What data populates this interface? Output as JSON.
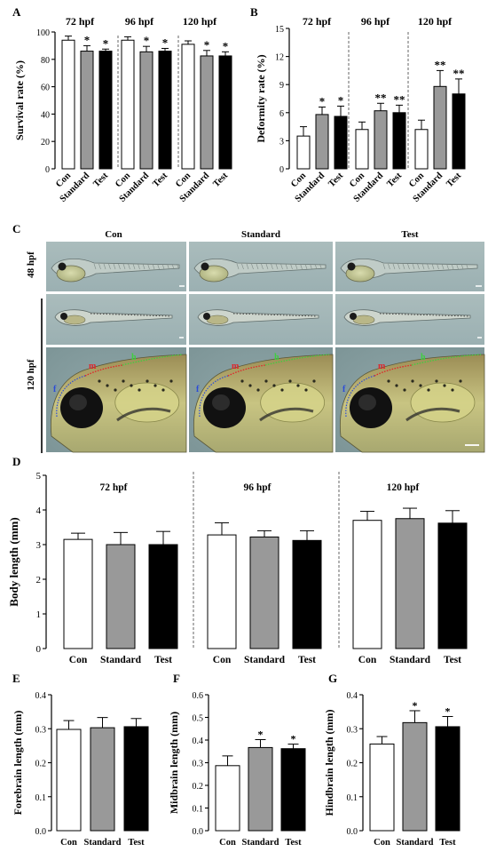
{
  "panels": {
    "A": "A",
    "B": "B",
    "C": "C",
    "D": "D",
    "E": "E",
    "F": "F",
    "G": "G"
  },
  "bar_colors": {
    "Con": "#ffffff",
    "Standard": "#999999",
    "Test": "#000000"
  },
  "micro": {
    "col_labels": [
      "Con",
      "Standard",
      "Test"
    ],
    "row_labels": [
      "48 hpf",
      "120 hpf"
    ],
    "region_labels": {
      "forebrain": "f",
      "midbrain": "m",
      "hindbrain": "h"
    },
    "region_colors": {
      "forebrain": "#2b4bd8",
      "midbrain": "#e0242a",
      "hindbrain": "#3fcf3f"
    }
  },
  "chart_data": [
    {
      "id": "A",
      "type": "bar",
      "groups": [
        "72 hpf",
        "96 hpf",
        "120 hpf"
      ],
      "categories": [
        "Con",
        "Standard",
        "Test"
      ],
      "series": [
        {
          "group": "72 hpf",
          "values": [
            94,
            86,
            86
          ],
          "errors": [
            3,
            4,
            1.5
          ],
          "sig": [
            "",
            "*",
            "*"
          ]
        },
        {
          "group": "96 hpf",
          "values": [
            94,
            85.5,
            86
          ],
          "errors": [
            2.5,
            4,
            2
          ],
          "sig": [
            "",
            "*",
            "*"
          ]
        },
        {
          "group": "120 hpf",
          "values": [
            91,
            82.5,
            82.5
          ],
          "errors": [
            2.5,
            4,
            3
          ],
          "sig": [
            "",
            "*",
            "*"
          ]
        }
      ],
      "ylabel": "Survival rate (%)",
      "ylim": [
        0,
        100
      ],
      "yticks": [
        "0",
        "20",
        "40",
        "60",
        "80",
        "100"
      ]
    },
    {
      "id": "B",
      "type": "bar",
      "groups": [
        "72 hpf",
        "96 hpf",
        "120 hpf"
      ],
      "categories": [
        "Con",
        "Standard",
        "Test"
      ],
      "series": [
        {
          "group": "72 hpf",
          "values": [
            3.5,
            5.8,
            5.6
          ],
          "errors": [
            1.0,
            0.8,
            1.1
          ],
          "sig": [
            "",
            "*",
            "*"
          ]
        },
        {
          "group": "96 hpf",
          "values": [
            4.2,
            6.2,
            6.0
          ],
          "errors": [
            0.8,
            0.8,
            0.8
          ],
          "sig": [
            "",
            "**",
            "**"
          ]
        },
        {
          "group": "120 hpf",
          "values": [
            4.2,
            8.8,
            8.0
          ],
          "errors": [
            1.0,
            1.7,
            1.6
          ],
          "sig": [
            "",
            "**",
            "**"
          ]
        }
      ],
      "ylabel": "Deformity rate (%)",
      "ylim": [
        0,
        15
      ],
      "yticks": [
        "0",
        "3",
        "6",
        "9",
        "12",
        "15"
      ]
    },
    {
      "id": "D",
      "type": "bar",
      "groups": [
        "72 hpf",
        "96 hpf",
        "120 hpf"
      ],
      "categories": [
        "Con",
        "Standard",
        "Test"
      ],
      "series": [
        {
          "group": "72 hpf",
          "values": [
            3.15,
            3.0,
            3.0
          ],
          "errors": [
            0.18,
            0.35,
            0.38
          ],
          "sig": [
            "",
            "",
            ""
          ]
        },
        {
          "group": "96 hpf",
          "values": [
            3.28,
            3.22,
            3.12
          ],
          "errors": [
            0.35,
            0.18,
            0.28
          ],
          "sig": [
            "",
            "",
            ""
          ]
        },
        {
          "group": "120 hpf",
          "values": [
            3.7,
            3.75,
            3.62
          ],
          "errors": [
            0.26,
            0.3,
            0.36
          ],
          "sig": [
            "",
            "",
            ""
          ]
        }
      ],
      "ylabel": "Body length (mm)",
      "ylim": [
        0,
        5
      ],
      "yticks": [
        "0",
        "1",
        "2",
        "3",
        "4",
        "5"
      ]
    },
    {
      "id": "E",
      "type": "bar",
      "categories": [
        "Con",
        "Standard",
        "Test"
      ],
      "values": [
        0.298,
        0.303,
        0.306
      ],
      "errors": [
        0.026,
        0.03,
        0.024
      ],
      "sig": [
        "",
        "",
        ""
      ],
      "ylabel": "Forebrain length (mm)",
      "ylim": [
        0,
        0.4
      ],
      "yticks": [
        "0.0",
        "0.1",
        "0.2",
        "0.3",
        "0.4"
      ]
    },
    {
      "id": "F",
      "type": "bar",
      "categories": [
        "Con",
        "Standard",
        "Test"
      ],
      "values": [
        0.287,
        0.367,
        0.362
      ],
      "errors": [
        0.043,
        0.035,
        0.02
      ],
      "sig": [
        "",
        "*",
        "*"
      ],
      "ylabel": "Midbrain length (mm)",
      "ylim": [
        0,
        0.6
      ],
      "yticks": [
        "0.0",
        "0.1",
        "0.2",
        "0.3",
        "0.4",
        "0.5",
        "0.6"
      ]
    },
    {
      "id": "G",
      "type": "bar",
      "categories": [
        "Con",
        "Standard",
        "Test"
      ],
      "values": [
        0.255,
        0.318,
        0.306
      ],
      "errors": [
        0.022,
        0.035,
        0.03
      ],
      "sig": [
        "",
        "*",
        "*"
      ],
      "ylabel": "Hindbrain length (mm)",
      "ylim": [
        0,
        0.4
      ],
      "yticks": [
        "0.0",
        "0.1",
        "0.2",
        "0.3",
        "0.4"
      ]
    }
  ]
}
